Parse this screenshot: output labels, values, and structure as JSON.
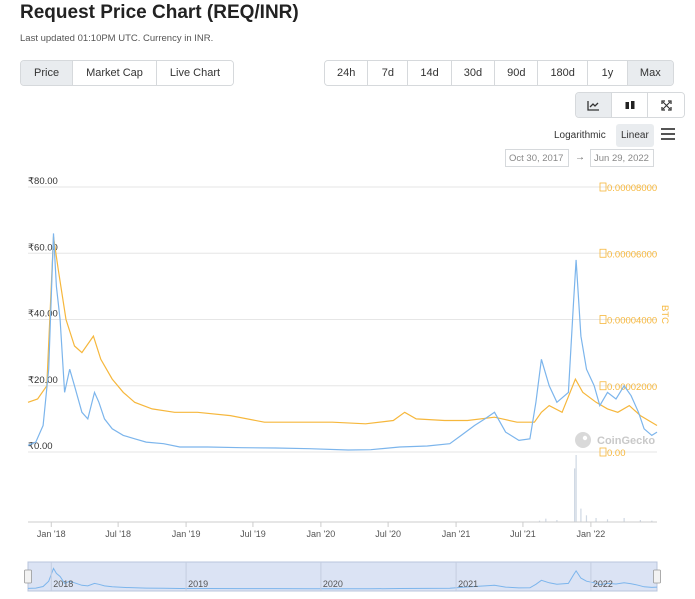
{
  "header": {
    "title": "Request Price Chart (REQ/INR)",
    "subtitle": "Last updated 01:10PM UTC. Currency in INR."
  },
  "metric_tabs": [
    {
      "label": "Price",
      "active": true
    },
    {
      "label": "Market Cap",
      "active": false
    },
    {
      "label": "Live Chart",
      "active": false
    }
  ],
  "range_tabs": [
    {
      "label": "24h",
      "active": false
    },
    {
      "label": "7d",
      "active": false
    },
    {
      "label": "14d",
      "active": false
    },
    {
      "label": "30d",
      "active": false
    },
    {
      "label": "90d",
      "active": false
    },
    {
      "label": "180d",
      "active": false
    },
    {
      "label": "1y",
      "active": false
    },
    {
      "label": "Max",
      "active": true
    }
  ],
  "view_buttons": [
    {
      "icon": "line-chart-icon",
      "active": true
    },
    {
      "icon": "candlestick-icon",
      "active": false
    },
    {
      "icon": "fullscreen-icon",
      "active": false
    }
  ],
  "scale": {
    "logarithmic_label": "Logarithmic",
    "linear_label": "Linear",
    "active": "Linear"
  },
  "date_range": {
    "from": "Oct 30, 2017",
    "to": "Jun 29, 2022",
    "arrow": "→"
  },
  "watermark": "CoinGecko",
  "colors": {
    "inr_line": "#7cb5ec",
    "btc_line": "#f6b73c",
    "volume": "#cfd8e3",
    "navigator_fill": "#dbe3f4",
    "accent": "#e9ecef"
  },
  "chart_data": {
    "type": "line",
    "x_range": [
      "2017-10-30",
      "2022-06-29"
    ],
    "x_ticks": [
      "Jan '18",
      "Jul '18",
      "Jan '19",
      "Jul '19",
      "Jan '20",
      "Jul '20",
      "Jan '21",
      "Jul '21",
      "Jan '22"
    ],
    "y_left": {
      "label": "",
      "ticks": [
        "₹0.00",
        "₹20.00",
        "₹40.00",
        "₹60.00",
        "₹80.00"
      ],
      "range": [
        0,
        80
      ]
    },
    "y_right": {
      "label": "BTC",
      "ticks": [
        "0.00",
        "0.00002000",
        "0.00004000",
        "0.00006000",
        "0.00008000"
      ],
      "range": [
        0,
        8e-05
      ]
    },
    "navigator_years": [
      "2018",
      "2019",
      "2020",
      "2021",
      "2022"
    ],
    "series": [
      {
        "name": "INR",
        "axis": "left",
        "points": [
          [
            "2017-10-30",
            2
          ],
          [
            "2017-11-20",
            3
          ],
          [
            "2017-12-10",
            8
          ],
          [
            "2017-12-25",
            25
          ],
          [
            "2018-01-07",
            66
          ],
          [
            "2018-01-15",
            50
          ],
          [
            "2018-01-25",
            40
          ],
          [
            "2018-02-06",
            18
          ],
          [
            "2018-02-20",
            25
          ],
          [
            "2018-03-05",
            20
          ],
          [
            "2018-03-25",
            12
          ],
          [
            "2018-04-10",
            10
          ],
          [
            "2018-04-28",
            18
          ],
          [
            "2018-05-10",
            15
          ],
          [
            "2018-05-25",
            10
          ],
          [
            "2018-06-15",
            7
          ],
          [
            "2018-07-15",
            5
          ],
          [
            "2018-08-15",
            4
          ],
          [
            "2018-09-15",
            3
          ],
          [
            "2018-11-01",
            2.5
          ],
          [
            "2018-12-15",
            1.5
          ],
          [
            "2019-03-01",
            1.5
          ],
          [
            "2019-06-01",
            1.3
          ],
          [
            "2019-09-01",
            1.2
          ],
          [
            "2019-12-01",
            1.0
          ],
          [
            "2020-03-15",
            0.6
          ],
          [
            "2020-05-15",
            0.7
          ],
          [
            "2020-08-01",
            1.5
          ],
          [
            "2020-10-15",
            1.8
          ],
          [
            "2020-12-15",
            2.5
          ],
          [
            "2021-01-15",
            5
          ],
          [
            "2021-02-20",
            8
          ],
          [
            "2021-03-20",
            10
          ],
          [
            "2021-04-15",
            12
          ],
          [
            "2021-05-15",
            6
          ],
          [
            "2021-06-20",
            3.5
          ],
          [
            "2021-07-20",
            4
          ],
          [
            "2021-08-05",
            15
          ],
          [
            "2021-08-20",
            28
          ],
          [
            "2021-09-10",
            20
          ],
          [
            "2021-10-01",
            15
          ],
          [
            "2021-11-01",
            18
          ],
          [
            "2021-11-15",
            45
          ],
          [
            "2021-11-22",
            58
          ],
          [
            "2021-12-05",
            35
          ],
          [
            "2021-12-20",
            25
          ],
          [
            "2022-01-10",
            20
          ],
          [
            "2022-01-25",
            14
          ],
          [
            "2022-02-15",
            18
          ],
          [
            "2022-03-10",
            16
          ],
          [
            "2022-04-01",
            20
          ],
          [
            "2022-04-20",
            17
          ],
          [
            "2022-05-10",
            12
          ],
          [
            "2022-05-25",
            7
          ],
          [
            "2022-06-15",
            5
          ],
          [
            "2022-06-29",
            6
          ]
        ]
      },
      {
        "name": "BTC",
        "axis": "right",
        "points": [
          [
            "2017-10-30",
            1.5e-05
          ],
          [
            "2017-11-25",
            1.6e-05
          ],
          [
            "2017-12-20",
            2e-05
          ],
          [
            "2018-01-07",
            6.5e-05
          ],
          [
            "2018-01-20",
            5.5e-05
          ],
          [
            "2018-02-10",
            4e-05
          ],
          [
            "2018-03-05",
            3.2e-05
          ],
          [
            "2018-03-25",
            3e-05
          ],
          [
            "2018-04-25",
            3.5e-05
          ],
          [
            "2018-05-15",
            2.8e-05
          ],
          [
            "2018-06-15",
            2.2e-05
          ],
          [
            "2018-07-15",
            1.8e-05
          ],
          [
            "2018-08-15",
            1.5e-05
          ],
          [
            "2018-10-01",
            1.3e-05
          ],
          [
            "2018-12-01",
            1.2e-05
          ],
          [
            "2019-02-01",
            1.2e-05
          ],
          [
            "2019-05-01",
            1.1e-05
          ],
          [
            "2019-08-01",
            9e-06
          ],
          [
            "2019-11-01",
            9e-06
          ],
          [
            "2020-02-01",
            9e-06
          ],
          [
            "2020-05-01",
            8.5e-06
          ],
          [
            "2020-07-15",
            9.5e-06
          ],
          [
            "2020-08-15",
            1.2e-05
          ],
          [
            "2020-09-15",
            1e-05
          ],
          [
            "2020-12-01",
            9.5e-06
          ],
          [
            "2021-02-01",
            9.5e-06
          ],
          [
            "2021-04-15",
            1.05e-05
          ],
          [
            "2021-06-15",
            9e-06
          ],
          [
            "2021-08-01",
            9e-06
          ],
          [
            "2021-08-20",
            1.2e-05
          ],
          [
            "2021-09-10",
            1.4e-05
          ],
          [
            "2021-10-15",
            1.2e-05
          ],
          [
            "2021-11-20",
            2.2e-05
          ],
          [
            "2021-12-10",
            1.8e-05
          ],
          [
            "2022-01-15",
            1.5e-05
          ],
          [
            "2022-02-15",
            1.3e-05
          ],
          [
            "2022-03-15",
            1.2e-05
          ],
          [
            "2022-04-15",
            1.4e-05
          ],
          [
            "2022-05-15",
            1.1e-05
          ],
          [
            "2022-06-29",
            8e-06
          ]
        ]
      }
    ],
    "volume": [
      [
        "2021-08-15",
        2
      ],
      [
        "2021-09-01",
        5
      ],
      [
        "2021-10-01",
        3
      ],
      [
        "2021-11-18",
        80
      ],
      [
        "2021-11-22",
        100
      ],
      [
        "2021-12-05",
        20
      ],
      [
        "2021-12-20",
        10
      ],
      [
        "2022-01-15",
        6
      ],
      [
        "2022-02-15",
        4
      ],
      [
        "2022-04-01",
        6
      ],
      [
        "2022-05-15",
        3
      ],
      [
        "2022-06-15",
        2
      ]
    ]
  }
}
